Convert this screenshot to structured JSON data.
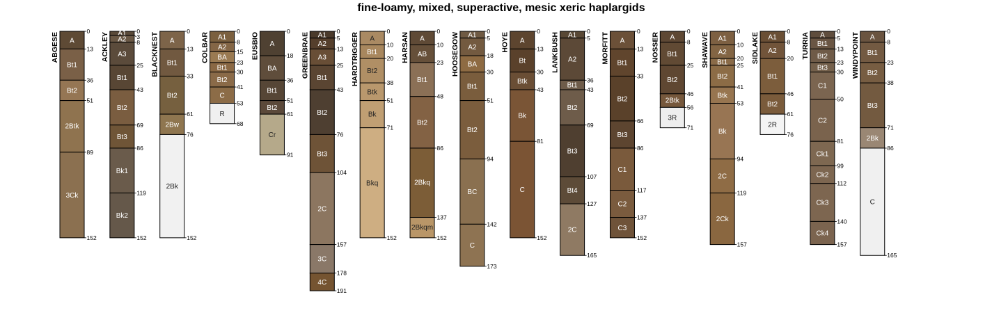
{
  "chart_data": {
    "type": "soil-profile",
    "title": "fine-loamy, mixed, superactive, mesic xeric haplargids",
    "depth_units": "cm",
    "profiles": [
      {
        "name": "ABGESE",
        "horizons": [
          {
            "name": "A",
            "top": 0,
            "bottom": 13,
            "color": "#5e4a35"
          },
          {
            "name": "Bt1",
            "top": 13,
            "bottom": 36,
            "color": "#7a6047"
          },
          {
            "name": "Bt2",
            "top": 36,
            "bottom": 51,
            "color": "#957654"
          },
          {
            "name": "2Btk",
            "top": 51,
            "bottom": 89,
            "color": "#8f734f",
            "small": true
          },
          {
            "name": "3Ck",
            "top": 89,
            "bottom": 152,
            "color": "#8b7050"
          }
        ]
      },
      {
        "name": "ACKLEY",
        "horizons": [
          {
            "name": "A1",
            "top": 0,
            "bottom": 3,
            "color": "#5a4a39"
          },
          {
            "name": "A2",
            "top": 3,
            "bottom": 8,
            "color": "#6a5845"
          },
          {
            "name": "A3",
            "top": 8,
            "bottom": 25,
            "color": "#5b4b3b"
          },
          {
            "name": "Bt1",
            "top": 25,
            "bottom": 43,
            "color": "#584634"
          },
          {
            "name": "Bt2",
            "top": 43,
            "bottom": 69,
            "color": "#7a5d40"
          },
          {
            "name": "Bt3",
            "top": 69,
            "bottom": 86,
            "color": "#6f5537"
          },
          {
            "name": "Bk1",
            "top": 86,
            "bottom": 119,
            "color": "#6a5b4b"
          },
          {
            "name": "Bk2",
            "top": 119,
            "bottom": 152,
            "color": "#65584a"
          }
        ]
      },
      {
        "name": "BLACKNEST",
        "horizons": [
          {
            "name": "A",
            "top": 0,
            "bottom": 13,
            "color": "#7d6449"
          },
          {
            "name": "Bt1",
            "top": 13,
            "bottom": 33,
            "color": "#715940"
          },
          {
            "name": "Bt2",
            "top": 33,
            "bottom": 61,
            "color": "#76603f"
          },
          {
            "name": "2Bw",
            "top": 61,
            "bottom": 76,
            "color": "#8f7650"
          },
          {
            "name": "2Bk",
            "top": 76,
            "bottom": 152,
            "color": "#f1f1f1"
          }
        ]
      },
      {
        "name": "COLBAR",
        "horizons": [
          {
            "name": "A1",
            "top": 0,
            "bottom": 8,
            "color": "#7b603f"
          },
          {
            "name": "A2",
            "top": 8,
            "bottom": 15,
            "color": "#846646"
          },
          {
            "name": "BA",
            "top": 15,
            "bottom": 23,
            "color": "#9a7a52"
          },
          {
            "name": "Bt1",
            "top": 23,
            "bottom": 30,
            "color": "#8a6844"
          },
          {
            "name": "Bt2",
            "top": 30,
            "bottom": 41,
            "color": "#8a6a48"
          },
          {
            "name": "C",
            "top": 41,
            "bottom": 53,
            "color": "#8c6c47"
          },
          {
            "name": "R",
            "top": 53,
            "bottom": 68,
            "color": "#f0f0f0"
          }
        ]
      },
      {
        "name": "EUSBIO",
        "horizons": [
          {
            "name": "A",
            "top": 0,
            "bottom": 18,
            "color": "#4f4132"
          },
          {
            "name": "BA",
            "top": 18,
            "bottom": 36,
            "color": "#5f4d3b"
          },
          {
            "name": "Bt1",
            "top": 36,
            "bottom": 51,
            "color": "#564636"
          },
          {
            "name": "Bt2",
            "top": 51,
            "bottom": 61,
            "color": "#5b493a"
          },
          {
            "name": "Cr",
            "top": 61,
            "bottom": 91,
            "color": "#b5a98a"
          }
        ]
      },
      {
        "name": "GREENBRAE",
        "horizons": [
          {
            "name": "A1",
            "top": 0,
            "bottom": 5,
            "color": "#4a3a2b"
          },
          {
            "name": "A2",
            "top": 5,
            "bottom": 13,
            "color": "#553f2c"
          },
          {
            "name": "A3",
            "top": 13,
            "bottom": 25,
            "color": "#684e36"
          },
          {
            "name": "Bt1",
            "top": 25,
            "bottom": 43,
            "color": "#5a4532"
          },
          {
            "name": "Bt2",
            "top": 43,
            "bottom": 76,
            "color": "#4e3f31"
          },
          {
            "name": "Bt3",
            "top": 76,
            "bottom": 104,
            "color": "#6e5337"
          },
          {
            "name": "2C",
            "top": 104,
            "bottom": 157,
            "color": "#8c7660"
          },
          {
            "name": "3C",
            "top": 157,
            "bottom": 178,
            "color": "#8a7868"
          },
          {
            "name": "4C",
            "top": 178,
            "bottom": 191,
            "color": "#755431"
          }
        ]
      },
      {
        "name": "HARDTRIGGER",
        "horizons": [
          {
            "name": "A",
            "top": 0,
            "bottom": 10,
            "color": "#aa8a63"
          },
          {
            "name": "Bt1",
            "top": 10,
            "bottom": 20,
            "color": "#a8875e"
          },
          {
            "name": "Bt2",
            "top": 20,
            "bottom": 38,
            "color": "#b08f65"
          },
          {
            "name": "Btk",
            "top": 38,
            "bottom": 51,
            "color": "#b9986d"
          },
          {
            "name": "Bk",
            "top": 51,
            "bottom": 71,
            "color": "#c09f73"
          },
          {
            "name": "Bkq",
            "top": 71,
            "bottom": 152,
            "color": "#ceae82"
          }
        ]
      },
      {
        "name": "HARSAN",
        "horizons": [
          {
            "name": "A",
            "top": 0,
            "bottom": 10,
            "color": "#5f4a36"
          },
          {
            "name": "AB",
            "top": 10,
            "bottom": 23,
            "color": "#66503a"
          },
          {
            "name": "Bt1",
            "top": 23,
            "bottom": 48,
            "color": "#8b7056"
          },
          {
            "name": "Bt2",
            "top": 48,
            "bottom": 86,
            "color": "#836244"
          },
          {
            "name": "2Bkq",
            "top": 86,
            "bottom": 137,
            "color": "#7c5d37",
            "small": true
          },
          {
            "name": "2Bkqm",
            "top": 137,
            "bottom": 152,
            "color": "#b99668",
            "small": true
          }
        ]
      },
      {
        "name": "HOOSEGOW",
        "horizons": [
          {
            "name": "A1",
            "top": 0,
            "bottom": 5,
            "color": "#6f5a43"
          },
          {
            "name": "A2",
            "top": 5,
            "bottom": 18,
            "color": "#735a40"
          },
          {
            "name": "BA",
            "top": 18,
            "bottom": 30,
            "color": "#8e6b43"
          },
          {
            "name": "Bt1",
            "top": 30,
            "bottom": 51,
            "color": "#7a5d3d"
          },
          {
            "name": "Bt2",
            "top": 51,
            "bottom": 94,
            "color": "#7b5d3d"
          },
          {
            "name": "BC",
            "top": 94,
            "bottom": 142,
            "color": "#8a7050"
          },
          {
            "name": "C",
            "top": 142,
            "bottom": 173,
            "color": "#8e7352"
          }
        ]
      },
      {
        "name": "HOYE",
        "horizons": [
          {
            "name": "A",
            "top": 0,
            "bottom": 13,
            "color": "#5d452f"
          },
          {
            "name": "Bt",
            "top": 13,
            "bottom": 30,
            "color": "#5a412b"
          },
          {
            "name": "Btk",
            "top": 30,
            "bottom": 43,
            "color": "#6a4e35"
          },
          {
            "name": "Bk",
            "top": 43,
            "bottom": 81,
            "color": "#7a5536"
          },
          {
            "name": "C",
            "top": 81,
            "bottom": 152,
            "color": "#7b5434"
          }
        ]
      },
      {
        "name": "LANKBUSH",
        "horizons": [
          {
            "name": "A1",
            "top": 0,
            "bottom": 5,
            "color": "#594835"
          },
          {
            "name": "A2",
            "top": 5,
            "bottom": 36,
            "color": "#5c4937"
          },
          {
            "name": "Bt1",
            "top": 36,
            "bottom": 43,
            "color": "#6e5c4a"
          },
          {
            "name": "Bt2",
            "top": 43,
            "bottom": 69,
            "color": "#6e5c4a"
          },
          {
            "name": "Bt3",
            "top": 69,
            "bottom": 107,
            "color": "#4f3f30"
          },
          {
            "name": "Bt4",
            "top": 107,
            "bottom": 127,
            "color": "#5d4b38"
          },
          {
            "name": "2C",
            "top": 127,
            "bottom": 165,
            "color": "#8f7a63"
          }
        ]
      },
      {
        "name": "MORFITT",
        "horizons": [
          {
            "name": "A",
            "top": 0,
            "bottom": 13,
            "color": "#6b5038"
          },
          {
            "name": "Bt1",
            "top": 13,
            "bottom": 33,
            "color": "#60452d"
          },
          {
            "name": "Bt2",
            "top": 33,
            "bottom": 66,
            "color": "#5a412a"
          },
          {
            "name": "Bt3",
            "top": 66,
            "bottom": 86,
            "color": "#5d4530"
          },
          {
            "name": "C1",
            "top": 86,
            "bottom": 117,
            "color": "#7a5a3c"
          },
          {
            "name": "C2",
            "top": 117,
            "bottom": 137,
            "color": "#7a5b3e"
          },
          {
            "name": "C3",
            "top": 137,
            "bottom": 152,
            "color": "#6f5339"
          }
        ]
      },
      {
        "name": "NOSSER",
        "horizons": [
          {
            "name": "A",
            "top": 0,
            "bottom": 8,
            "color": "#5e4834"
          },
          {
            "name": "Bt1",
            "top": 8,
            "bottom": 25,
            "color": "#614a34"
          },
          {
            "name": "Bt2",
            "top": 25,
            "bottom": 46,
            "color": "#5f4732"
          },
          {
            "name": "2Btk",
            "top": 46,
            "bottom": 56,
            "color": "#76583c",
            "small": true
          },
          {
            "name": "3R",
            "top": 56,
            "bottom": 71,
            "color": "#eeeeee"
          }
        ]
      },
      {
        "name": "SHAWAVE",
        "horizons": [
          {
            "name": "A1",
            "top": 0,
            "bottom": 10,
            "color": "#7d6042"
          },
          {
            "name": "A2",
            "top": 10,
            "bottom": 20,
            "color": "#836544"
          },
          {
            "name": "Bt1",
            "top": 20,
            "bottom": 25,
            "color": "#8a6b48"
          },
          {
            "name": "Bt2",
            "top": 25,
            "bottom": 41,
            "color": "#8c6c46"
          },
          {
            "name": "Btk",
            "top": 41,
            "bottom": 53,
            "color": "#977550"
          },
          {
            "name": "Bk",
            "top": 53,
            "bottom": 94,
            "color": "#987553"
          },
          {
            "name": "2C",
            "top": 94,
            "bottom": 119,
            "color": "#8f6c45"
          },
          {
            "name": "2Ck",
            "top": 119,
            "bottom": 157,
            "color": "#8a6740"
          }
        ]
      },
      {
        "name": "SIDLAKE",
        "horizons": [
          {
            "name": "A1",
            "top": 0,
            "bottom": 8,
            "color": "#6a4f35"
          },
          {
            "name": "A2",
            "top": 8,
            "bottom": 20,
            "color": "#71543a"
          },
          {
            "name": "Bt1",
            "top": 20,
            "bottom": 46,
            "color": "#7c5d3c"
          },
          {
            "name": "Bt2",
            "top": 46,
            "bottom": 61,
            "color": "#7a5b3b"
          },
          {
            "name": "2R",
            "top": 61,
            "bottom": 76,
            "color": "#f4f4f4"
          }
        ]
      },
      {
        "name": "TURRIA",
        "horizons": [
          {
            "name": "A",
            "top": 0,
            "bottom": 5,
            "color": "#5f4d3d"
          },
          {
            "name": "Bt1",
            "top": 5,
            "bottom": 13,
            "color": "#6a5644"
          },
          {
            "name": "Bt2",
            "top": 13,
            "bottom": 23,
            "color": "#6f5b48"
          },
          {
            "name": "Bt3",
            "top": 23,
            "bottom": 30,
            "color": "#74604b"
          },
          {
            "name": "C1",
            "top": 30,
            "bottom": 50,
            "color": "#7b6550"
          },
          {
            "name": "C2",
            "top": 50,
            "bottom": 81,
            "color": "#7a634d"
          },
          {
            "name": "Ck1",
            "top": 81,
            "bottom": 99,
            "color": "#7e6851"
          },
          {
            "name": "Ck2",
            "top": 99,
            "bottom": 112,
            "color": "#7d6650"
          },
          {
            "name": "Ck3",
            "top": 112,
            "bottom": 140,
            "color": "#7d6650"
          },
          {
            "name": "Ck4",
            "top": 140,
            "bottom": 157,
            "color": "#7b644f"
          }
        ]
      },
      {
        "name": "WINDYPOINT",
        "horizons": [
          {
            "name": "A",
            "top": 0,
            "bottom": 8,
            "color": "#6a5440"
          },
          {
            "name": "Bt1",
            "top": 8,
            "bottom": 23,
            "color": "#735a42"
          },
          {
            "name": "Bt2",
            "top": 23,
            "bottom": 38,
            "color": "#775d42"
          },
          {
            "name": "Bt3",
            "top": 38,
            "bottom": 71,
            "color": "#735a40"
          },
          {
            "name": "2Bk",
            "top": 71,
            "bottom": 86,
            "color": "#9a8774"
          },
          {
            "name": "C",
            "top": 86,
            "bottom": 165,
            "color": "#f0f0f0"
          }
        ]
      }
    ]
  }
}
